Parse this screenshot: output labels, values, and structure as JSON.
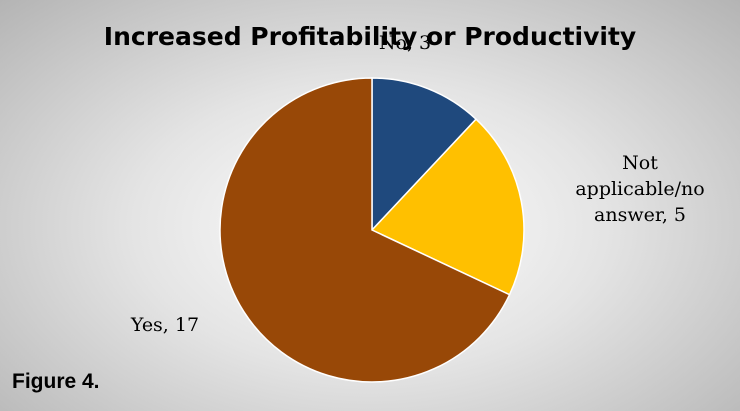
{
  "chart_data": {
    "type": "pie",
    "title": "Increased Profitability or Productivity",
    "categories": [
      "No",
      "Not applicable/no answer",
      "Yes"
    ],
    "values": [
      3,
      5,
      17
    ],
    "value_labels": [
      "No, 3",
      "Not applicable/no answer, 5",
      "Yes, 17"
    ],
    "colors": [
      "#1f497d",
      "#ffc000",
      "#984807"
    ]
  },
  "caption": "Figure 4."
}
